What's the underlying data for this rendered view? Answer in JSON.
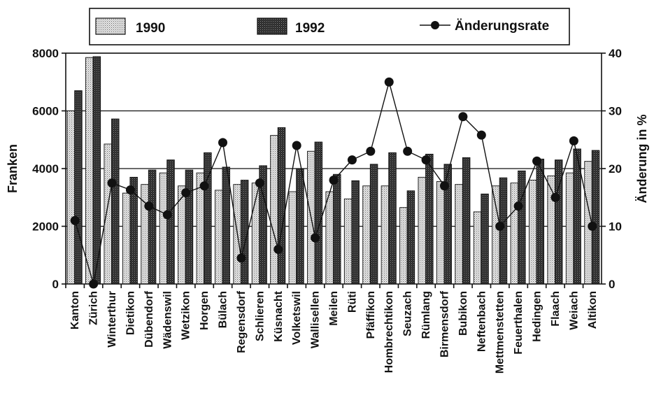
{
  "chart_data": {
    "type": "bar",
    "title": "",
    "ylabel": "Franken",
    "y2label": "Änderung in %",
    "ylim": [
      0,
      8000
    ],
    "y2lim": [
      0,
      40
    ],
    "yticks": [
      "0",
      "2000",
      "4000",
      "6000",
      "8000"
    ],
    "y2ticks": [
      "0",
      "10",
      "20",
      "30",
      "40"
    ],
    "grid": true,
    "legend_position": "top",
    "categories": [
      "Kanton",
      "Zürich",
      "Winterthur",
      "Dietikon",
      "Dübendorf",
      "Wädenswil",
      "Wetzikon",
      "Horgen",
      "Bülach",
      "Regensdorf",
      "Schlieren",
      "Küsnacht",
      "Volketswil",
      "Wallisellen",
      "Meilen",
      "Rüti",
      "Pfäffikon",
      "Hombrechtikon",
      "Seuzach",
      "Rümlang",
      "Birmensdorf",
      "Bubikon",
      "Neftenbach",
      "Mettmenstetten",
      "Feuerthalen",
      "Hedingen",
      "Flaach",
      "Weiach",
      "Altikon"
    ],
    "series": [
      {
        "name": "1990",
        "kind": "bar",
        "axis": "left",
        "pattern": "light-dotted",
        "values": [
          6000,
          7850,
          4850,
          3150,
          3450,
          3850,
          3400,
          3850,
          3250,
          3450,
          3500,
          5150,
          3200,
          4600,
          3200,
          2950,
          3400,
          3400,
          2650,
          3700,
          3550,
          3450,
          2500,
          3400,
          3500,
          3600,
          3750,
          3850,
          4250
        ]
      },
      {
        "name": "1992",
        "kind": "bar",
        "axis": "right-of-pair",
        "pattern": "dark-crosshatch",
        "values": [
          6700,
          7880,
          5720,
          3700,
          3950,
          4300,
          3950,
          4550,
          4050,
          3600,
          4100,
          5420,
          4000,
          4920,
          3800,
          3580,
          4150,
          4550,
          3230,
          4500,
          4150,
          4380,
          3120,
          3680,
          3920,
          4330,
          4300,
          4680,
          4630
        ]
      },
      {
        "name": "Änderungsrate",
        "kind": "line",
        "axis": "right",
        "values": [
          11,
          0,
          17.5,
          16.3,
          13.5,
          12,
          15.8,
          17,
          24.5,
          4.5,
          17.5,
          6,
          24,
          8,
          18,
          21.5,
          23,
          35,
          23,
          21.5,
          17,
          29,
          25.8,
          10,
          13.5,
          21.3,
          15,
          24.8,
          10
        ]
      }
    ],
    "colors": {
      "bar1990": "#d9d9d9",
      "bar1992": "#2e2e2e",
      "line": "#111111"
    }
  }
}
